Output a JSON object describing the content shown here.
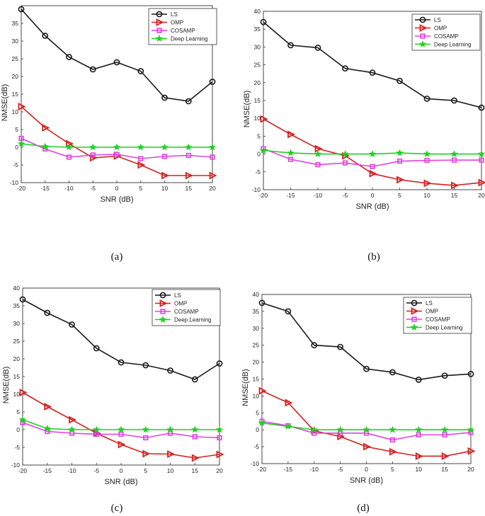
{
  "series_colors": {
    "LS": "#1a1a1a",
    "OMP": "#d42020",
    "COSAMP": "#e040e0",
    "Deep Learning": "#20d020"
  },
  "chart_data": [
    {
      "type": "line",
      "caption": "(a)",
      "xlabel": "SNR (dB)",
      "ylabel": "NMSE(dB)",
      "x": [
        -20,
        -15,
        -10,
        -5,
        0,
        5,
        10,
        15,
        20
      ],
      "xlim": [
        -20,
        20
      ],
      "ylim": [
        -10,
        40
      ],
      "xticks": [
        -20,
        -15,
        -10,
        -5,
        0,
        5,
        10,
        15,
        20
      ],
      "yticks": [
        -10,
        -5,
        0,
        5,
        10,
        15,
        20,
        25,
        30,
        35
      ],
      "legend_position": "top-right",
      "series": [
        {
          "name": "LS",
          "marker": "circle",
          "values": [
            39,
            31.5,
            25.5,
            22,
            24,
            21.5,
            14,
            13,
            18.5
          ]
        },
        {
          "name": "OMP",
          "marker": "triangle-right",
          "values": [
            11.5,
            5.5,
            1,
            -3,
            -2.5,
            -5,
            -8,
            -8,
            -8
          ]
        },
        {
          "name": "COSAMP",
          "marker": "square",
          "values": [
            2.5,
            -0.5,
            -2.8,
            -2.2,
            -2,
            -3.2,
            -2.6,
            -2.3,
            -2.8
          ]
        },
        {
          "name": "Deep Learning",
          "marker": "star",
          "values": [
            1,
            0.2,
            0,
            0,
            0,
            0,
            0,
            0,
            0
          ]
        }
      ]
    },
    {
      "type": "line",
      "caption": "(b)",
      "xlabel": "SNR (dB)",
      "ylabel": "NMSE(dB)",
      "x": [
        -20,
        -15,
        -10,
        -5,
        0,
        5,
        10,
        15,
        20
      ],
      "xlim": [
        -20,
        20
      ],
      "ylim": [
        -10,
        40
      ],
      "xticks": [
        -20,
        -15,
        -10,
        -5,
        0,
        5,
        10,
        15,
        20
      ],
      "yticks": [
        -10,
        -5,
        0,
        5,
        10,
        15,
        20,
        25,
        30,
        35,
        40
      ],
      "legend_position": "top-right",
      "series": [
        {
          "name": "LS",
          "marker": "circle",
          "values": [
            37,
            30.5,
            29.8,
            24,
            22.8,
            20.5,
            15.5,
            15,
            13
          ]
        },
        {
          "name": "OMP",
          "marker": "triangle-right",
          "values": [
            9.8,
            5.5,
            1.5,
            -0.5,
            -5.5,
            -7.2,
            -8.2,
            -8.8,
            -8
          ]
        },
        {
          "name": "COSAMP",
          "marker": "square",
          "values": [
            1.5,
            -1.5,
            -3,
            -2.5,
            -3.5,
            -2,
            -1.8,
            -1.7,
            -1.7
          ]
        },
        {
          "name": "Deep Learning",
          "marker": "star",
          "values": [
            1,
            0.3,
            0,
            0,
            0,
            0.3,
            0,
            0,
            0
          ]
        }
      ]
    },
    {
      "type": "line",
      "caption": "(c)",
      "xlabel": "SNR (dB)",
      "ylabel": "NMSE(dB)",
      "x": [
        -20,
        -15,
        -10,
        -5,
        0,
        5,
        10,
        15,
        20
      ],
      "xlim": [
        -20,
        20
      ],
      "ylim": [
        -10,
        40
      ],
      "xticks": [
        -20,
        -15,
        -10,
        -5,
        0,
        5,
        10,
        15,
        20
      ],
      "yticks": [
        -10,
        -5,
        0,
        5,
        10,
        15,
        20,
        25,
        30,
        35,
        40
      ],
      "legend_position": "top-right",
      "series": [
        {
          "name": "LS",
          "marker": "circle",
          "values": [
            36.8,
            33,
            29.7,
            23,
            19,
            18.2,
            16.7,
            14.2,
            18.7
          ]
        },
        {
          "name": "OMP",
          "marker": "triangle-right",
          "values": [
            10.5,
            6.5,
            2.8,
            -1,
            -4.2,
            -6.8,
            -6.9,
            -8,
            -7
          ]
        },
        {
          "name": "COSAMP",
          "marker": "square",
          "values": [
            2,
            -0.5,
            -1,
            -1.3,
            -1.3,
            -2.3,
            -1,
            -2,
            -2.3
          ]
        },
        {
          "name": "Deep Learning",
          "marker": "star",
          "values": [
            2.8,
            0.3,
            0,
            0,
            0,
            0,
            0,
            0,
            0
          ]
        }
      ]
    },
    {
      "type": "line",
      "caption": "(d)",
      "xlabel": "SNR (dB)",
      "ylabel": "NMSE(dB)",
      "x": [
        -20,
        -15,
        -10,
        -5,
        0,
        5,
        10,
        15,
        20
      ],
      "xlim": [
        -20,
        20
      ],
      "ylim": [
        -10,
        40
      ],
      "xticks": [
        -20,
        -15,
        -10,
        -5,
        0,
        5,
        10,
        15,
        20
      ],
      "yticks": [
        -10,
        -5,
        0,
        5,
        10,
        15,
        20,
        25,
        30,
        35,
        40
      ],
      "legend_position": "top-right",
      "series": [
        {
          "name": "LS",
          "marker": "circle",
          "values": [
            37.5,
            35,
            25,
            24.5,
            18,
            17,
            14.8,
            16,
            16.5
          ]
        },
        {
          "name": "OMP",
          "marker": "triangle-right",
          "values": [
            11.5,
            8,
            -0.3,
            -2,
            -5,
            -6.5,
            -7.8,
            -7.8,
            -6.3
          ]
        },
        {
          "name": "COSAMP",
          "marker": "square",
          "values": [
            2.5,
            1.2,
            -1,
            -1,
            -1,
            -3,
            -1.5,
            -1.5,
            -0.8
          ]
        },
        {
          "name": "Deep Learning",
          "marker": "star",
          "values": [
            2,
            1,
            0,
            0,
            0,
            0,
            0,
            0,
            0
          ]
        }
      ]
    }
  ]
}
